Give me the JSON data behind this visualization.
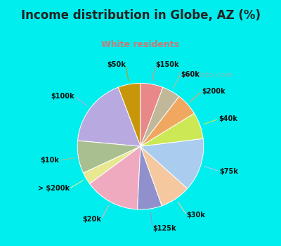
{
  "title": "Income distribution in Globe, AZ (%)",
  "subtitle": "White residents",
  "title_color": "#222222",
  "subtitle_color": "#cc7777",
  "bg_cyan": "#00eeee",
  "bg_chart": "#dff0e8",
  "watermark_text": "City-Data.com",
  "watermark_color": "#aaaaaa",
  "labels": [
    "$50k",
    "$100k",
    "$10k",
    "> $200k",
    "$20k",
    "$125k",
    "$30k",
    "$75k",
    "$40k",
    "$200k",
    "$60k",
    "$150k"
  ],
  "values": [
    5.5,
    17.0,
    8.0,
    3.0,
    13.5,
    6.0,
    7.5,
    13.0,
    6.5,
    5.5,
    4.5,
    5.5
  ],
  "colors": [
    "#c8960a",
    "#b8aae0",
    "#aabf90",
    "#e8e890",
    "#f0aac0",
    "#9090cc",
    "#f5c8a0",
    "#aaccee",
    "#cce855",
    "#f0a860",
    "#c0b898",
    "#e88888"
  ],
  "startangle": 90,
  "title_fontsize": 12,
  "subtitle_fontsize": 9,
  "label_fontsize": 7
}
